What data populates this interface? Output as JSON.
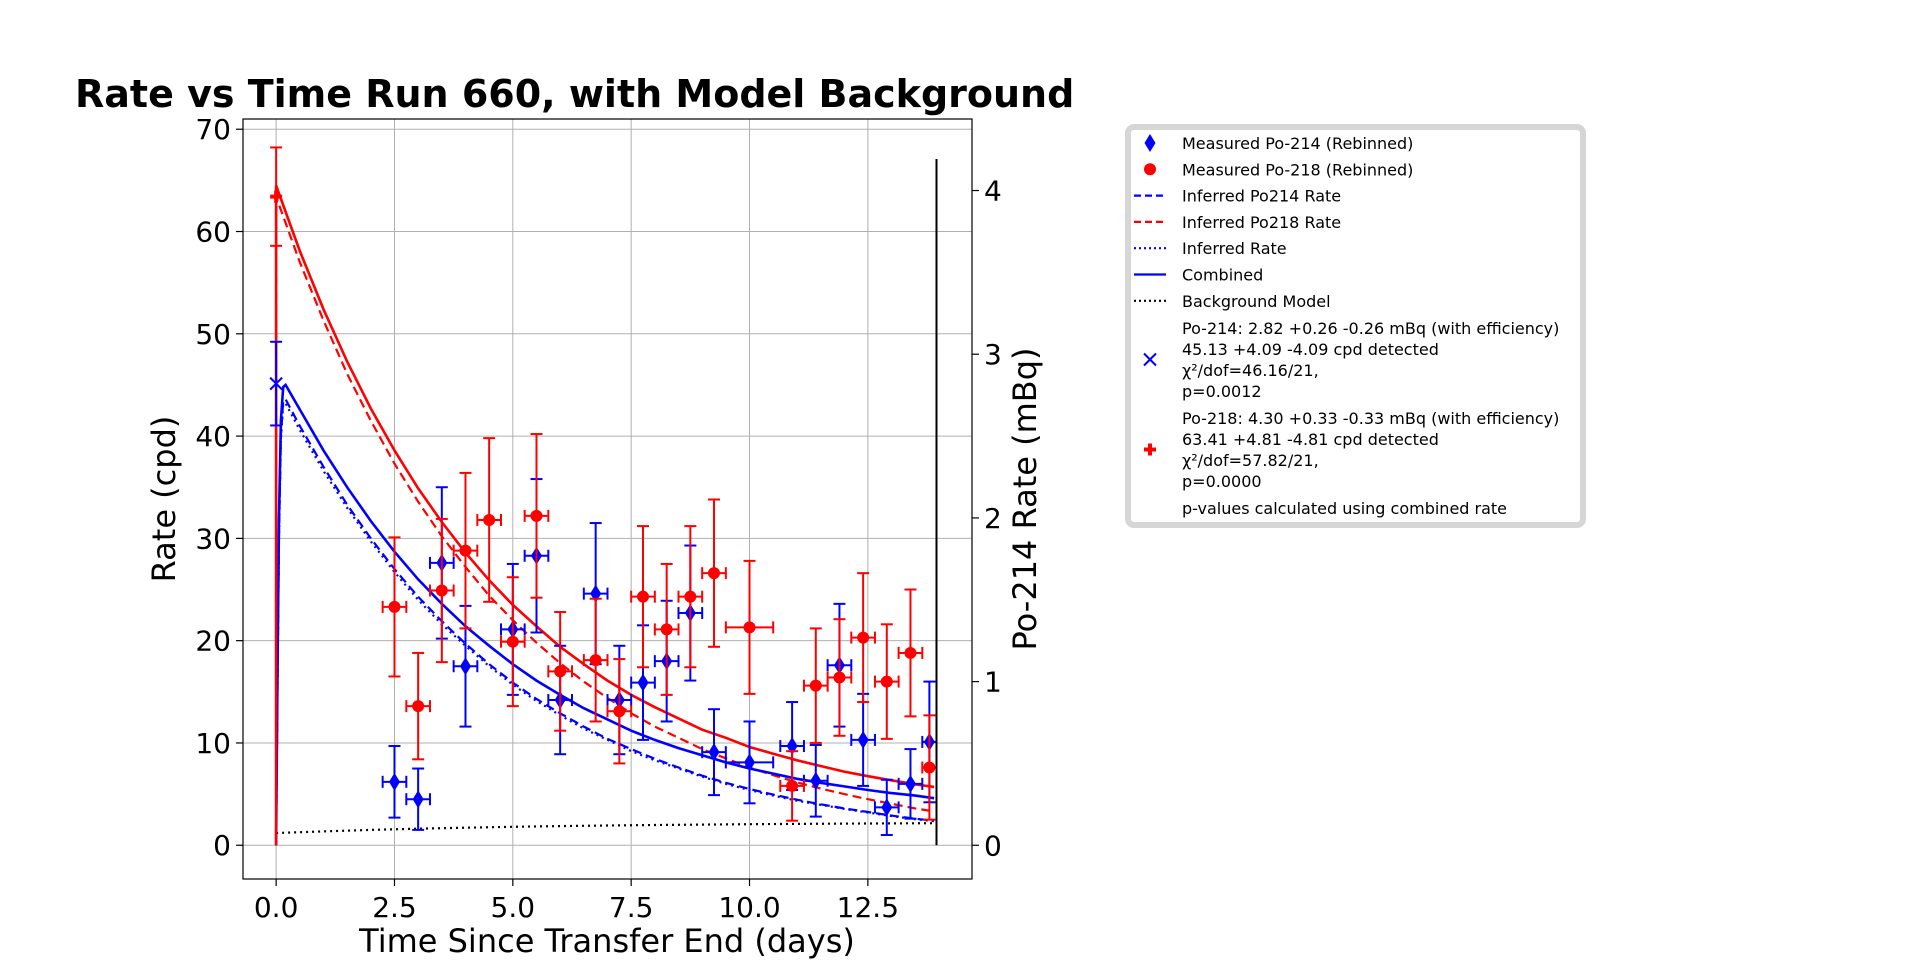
{
  "chart_data": {
    "type": "scatter",
    "title": "Rate vs Time Run 660, with Model Background",
    "xlabel": "Time Since Transfer End (days)",
    "ylabel": "Rate (cpd)",
    "y2label": "Po-214 Rate (mBq)",
    "xlim": [
      -0.7,
      14.7
    ],
    "ylim": [
      -3.3,
      71.0
    ],
    "y2lim": [
      -0.206,
      4.437
    ],
    "grid": true,
    "legend_position": "outside right",
    "x_ticks": [
      "0.0",
      "2.5",
      "5.0",
      "7.5",
      "10.0",
      "12.5"
    ],
    "x_tick_values": [
      0,
      2.5,
      5.0,
      7.5,
      10.0,
      12.5
    ],
    "y_ticks": [
      "0",
      "10",
      "20",
      "30",
      "40",
      "50",
      "60",
      "70"
    ],
    "y_tick_values": [
      0,
      10,
      20,
      30,
      40,
      50,
      60,
      70
    ],
    "y2_ticks": [
      "0",
      "1",
      "2",
      "3",
      "4"
    ],
    "y2_tick_values": [
      0,
      1,
      2,
      3,
      4
    ],
    "colors": {
      "po214": "#0000ff",
      "po218": "#ff0000",
      "background": "#000000"
    },
    "series": [
      {
        "name": "Measured Po-214 (Rebinned)",
        "kind": "points",
        "marker": "diamond",
        "color": "#0000ff",
        "points": [
          {
            "x": 2.5,
            "xerr": 0.25,
            "y": 6.2,
            "yerr": 3.5
          },
          {
            "x": 3.0,
            "xerr": 0.25,
            "y": 4.5,
            "yerr": 3.0
          },
          {
            "x": 3.5,
            "xerr": 0.25,
            "y": 27.6,
            "yerr": 7.4
          },
          {
            "x": 4.0,
            "xerr": 0.25,
            "y": 17.5,
            "yerr": 5.9
          },
          {
            "x": 5.0,
            "xerr": 0.25,
            "y": 21.1,
            "yerr": 6.4
          },
          {
            "x": 5.5,
            "xerr": 0.25,
            "y": 28.3,
            "yerr": 7.5
          },
          {
            "x": 6.0,
            "xerr": 0.25,
            "y": 14.2,
            "yerr": 5.3
          },
          {
            "x": 6.75,
            "xerr": 0.25,
            "y": 24.6,
            "yerr": 6.9
          },
          {
            "x": 7.25,
            "xerr": 0.25,
            "y": 14.2,
            "yerr": 5.3
          },
          {
            "x": 7.75,
            "xerr": 0.25,
            "y": 15.9,
            "yerr": 5.6
          },
          {
            "x": 8.25,
            "xerr": 0.25,
            "y": 18.0,
            "yerr": 5.9
          },
          {
            "x": 8.75,
            "xerr": 0.25,
            "y": 22.7,
            "yerr": 6.6
          },
          {
            "x": 9.25,
            "xerr": 0.25,
            "y": 9.1,
            "yerr": 4.2
          },
          {
            "x": 10.0,
            "xerr": 0.5,
            "y": 8.1,
            "yerr": 4.0
          },
          {
            "x": 10.9,
            "xerr": 0.25,
            "y": 9.7,
            "yerr": 4.3
          },
          {
            "x": 11.4,
            "xerr": 0.25,
            "y": 6.3,
            "yerr": 3.5
          },
          {
            "x": 11.9,
            "xerr": 0.25,
            "y": 17.6,
            "yerr": 6.0
          },
          {
            "x": 12.4,
            "xerr": 0.25,
            "y": 10.3,
            "yerr": 4.5
          },
          {
            "x": 12.9,
            "xerr": 0.25,
            "y": 3.7,
            "yerr": 2.7
          },
          {
            "x": 13.4,
            "xerr": 0.25,
            "y": 6.0,
            "yerr": 3.4
          },
          {
            "x": 13.8,
            "xerr": 0.15,
            "y": 10.1,
            "yerr": 5.9
          }
        ]
      },
      {
        "name": "Measured Po-218 (Rebinned)",
        "kind": "points",
        "marker": "circle",
        "color": "#ff0000",
        "points": [
          {
            "x": 2.5,
            "xerr": 0.25,
            "y": 23.3,
            "yerr": 6.8
          },
          {
            "x": 3.0,
            "xerr": 0.25,
            "y": 13.6,
            "yerr": 5.2
          },
          {
            "x": 3.5,
            "xerr": 0.25,
            "y": 24.9,
            "yerr": 7.0
          },
          {
            "x": 4.0,
            "xerr": 0.25,
            "y": 28.8,
            "yerr": 7.6
          },
          {
            "x": 4.5,
            "xerr": 0.25,
            "y": 31.8,
            "yerr": 8.0
          },
          {
            "x": 5.0,
            "xerr": 0.25,
            "y": 19.9,
            "yerr": 6.3
          },
          {
            "x": 5.5,
            "xerr": 0.25,
            "y": 32.2,
            "yerr": 8.0
          },
          {
            "x": 6.0,
            "xerr": 0.25,
            "y": 17.0,
            "yerr": 5.8
          },
          {
            "x": 6.75,
            "xerr": 0.25,
            "y": 18.1,
            "yerr": 6.0
          },
          {
            "x": 7.25,
            "xerr": 0.25,
            "y": 13.1,
            "yerr": 5.1
          },
          {
            "x": 7.75,
            "xerr": 0.25,
            "y": 24.3,
            "yerr": 6.9
          },
          {
            "x": 8.25,
            "xerr": 0.25,
            "y": 21.1,
            "yerr": 6.4
          },
          {
            "x": 8.75,
            "xerr": 0.25,
            "y": 24.3,
            "yerr": 6.9
          },
          {
            "x": 9.25,
            "xerr": 0.25,
            "y": 26.6,
            "yerr": 7.2
          },
          {
            "x": 10.0,
            "xerr": 0.5,
            "y": 21.3,
            "yerr": 6.5
          },
          {
            "x": 10.9,
            "xerr": 0.25,
            "y": 5.8,
            "yerr": 3.4
          },
          {
            "x": 11.4,
            "xerr": 0.25,
            "y": 15.6,
            "yerr": 5.6
          },
          {
            "x": 11.9,
            "xerr": 0.25,
            "y": 16.4,
            "yerr": 5.7
          },
          {
            "x": 12.4,
            "xerr": 0.25,
            "y": 20.3,
            "yerr": 6.3
          },
          {
            "x": 12.9,
            "xerr": 0.25,
            "y": 16.0,
            "yerr": 5.6
          },
          {
            "x": 13.4,
            "xerr": 0.25,
            "y": 18.8,
            "yerr": 6.2
          },
          {
            "x": 13.8,
            "xerr": 0.15,
            "y": 7.6,
            "yerr": 5.1
          }
        ]
      },
      {
        "name": "Inferred Po214 Rate",
        "kind": "curve",
        "style": "dashed",
        "color": "#0000ff",
        "x": [
          0.0,
          0.03,
          0.06,
          0.1,
          0.15,
          0.2,
          0.5,
          1.0,
          1.5,
          2.0,
          2.5,
          3.0,
          3.5,
          4.0,
          4.5,
          5.0,
          5.5,
          6.0,
          6.5,
          7.0,
          7.5,
          8.0,
          8.5,
          9.0,
          9.5,
          10.0,
          10.5,
          11.0,
          11.5,
          12.0,
          12.5,
          13.0,
          13.5,
          13.9
        ],
        "y": [
          0.0,
          17.0,
          30.5,
          40.0,
          43.5,
          43.6,
          41.0,
          37.0,
          33.3,
          30.0,
          27.0,
          24.3,
          21.9,
          19.7,
          17.7,
          15.9,
          14.3,
          12.9,
          11.6,
          10.4,
          9.4,
          8.45,
          7.6,
          6.8,
          6.1,
          5.5,
          4.95,
          4.45,
          4.0,
          3.6,
          3.25,
          2.9,
          2.6,
          2.4
        ]
      },
      {
        "name": "Inferred Po218 Rate",
        "kind": "curve",
        "style": "dashed",
        "color": "#ff0000",
        "x": [
          0.0,
          0.0,
          0.5,
          1.0,
          1.5,
          2.0,
          2.5,
          3.0,
          3.5,
          4.0,
          4.5,
          5.0,
          5.5,
          6.0,
          6.5,
          7.0,
          7.5,
          8.0,
          8.5,
          9.0,
          9.5,
          10.0,
          10.5,
          11.0,
          11.5,
          12.0,
          12.5,
          13.0,
          13.5,
          13.9
        ],
        "y": [
          0.0,
          63.4,
          57.0,
          51.3,
          46.1,
          41.5,
          37.3,
          33.6,
          30.2,
          27.2,
          24.4,
          22.0,
          19.8,
          17.8,
          16.0,
          14.4,
          12.9,
          11.6,
          10.5,
          9.4,
          8.5,
          7.6,
          6.85,
          6.15,
          5.55,
          5.0,
          4.5,
          4.05,
          3.6,
          3.3
        ]
      },
      {
        "name": "Inferred Rate",
        "kind": "curve",
        "style": "dotted",
        "color": "#0000ff",
        "x": [
          0.0,
          0.03,
          0.06,
          0.1,
          0.15,
          0.2,
          0.5,
          1.0,
          1.5,
          2.0,
          2.5,
          3.0,
          3.5,
          4.0,
          4.5,
          5.0,
          5.5,
          6.0,
          6.5,
          7.0,
          7.5,
          8.0,
          8.5,
          9.0,
          9.5,
          10.0,
          10.5,
          11.0,
          11.5,
          12.0,
          12.5,
          13.0,
          13.5,
          13.9
        ],
        "y": [
          0.0,
          16.8,
          30.2,
          39.6,
          43.1,
          43.2,
          40.6,
          36.6,
          33.0,
          29.7,
          26.7,
          24.0,
          21.6,
          19.5,
          17.5,
          15.7,
          14.1,
          12.7,
          11.4,
          10.3,
          9.2,
          8.3,
          7.5,
          6.7,
          6.0,
          5.4,
          4.85,
          4.35,
          3.95,
          3.55,
          3.2,
          2.85,
          2.55,
          2.35
        ]
      },
      {
        "name": "Combined",
        "kind": "curve",
        "style": "solid",
        "color": "#0000ff",
        "x": [
          0.0,
          0.03,
          0.06,
          0.1,
          0.15,
          0.2,
          0.5,
          1.0,
          1.5,
          2.0,
          2.5,
          3.0,
          3.5,
          4.0,
          4.5,
          5.0,
          5.5,
          6.0,
          6.5,
          7.0,
          7.5,
          8.0,
          8.5,
          9.0,
          9.5,
          10.0,
          10.5,
          11.0,
          11.5,
          12.0,
          12.5,
          13.0,
          13.5,
          13.9
        ],
        "y": [
          0.0,
          18.2,
          32.0,
          41.5,
          44.8,
          45.0,
          42.6,
          38.6,
          35.0,
          31.7,
          28.7,
          26.0,
          23.6,
          21.4,
          19.5,
          17.7,
          16.1,
          14.7,
          13.4,
          12.3,
          11.2,
          10.3,
          9.5,
          8.8,
          8.1,
          7.5,
          7.0,
          6.5,
          6.1,
          5.75,
          5.4,
          5.1,
          4.85,
          4.6
        ]
      },
      {
        "name": "Combined Po218",
        "kind": "curve",
        "style": "solid",
        "color": "#ff0000",
        "x": [
          0.0,
          0.0,
          0.5,
          1.0,
          1.5,
          2.0,
          2.5,
          3.0,
          3.5,
          4.0,
          4.5,
          5.0,
          5.5,
          6.0,
          6.5,
          7.0,
          7.5,
          8.0,
          8.5,
          9.0,
          9.5,
          10.0,
          10.5,
          11.0,
          11.5,
          12.0,
          12.5,
          13.0,
          13.5,
          13.9
        ],
        "y": [
          0.0,
          64.5,
          58.1,
          52.4,
          47.3,
          42.7,
          38.6,
          34.9,
          31.6,
          28.6,
          25.9,
          23.5,
          21.4,
          19.4,
          17.7,
          16.1,
          14.7,
          13.5,
          12.4,
          11.3,
          10.5,
          9.6,
          8.95,
          8.3,
          7.75,
          7.2,
          6.75,
          6.35,
          5.95,
          5.7
        ]
      },
      {
        "name": "Background Model",
        "kind": "curve",
        "style": "dotted",
        "color": "#000000",
        "x": [
          0.0,
          1.0,
          2.0,
          3.0,
          4.0,
          5.0,
          6.0,
          7.0,
          8.0,
          9.0,
          10.0,
          11.0,
          12.0,
          13.0,
          13.9
        ],
        "y": [
          1.2,
          1.35,
          1.5,
          1.62,
          1.72,
          1.8,
          1.87,
          1.93,
          1.98,
          2.02,
          2.06,
          2.09,
          2.12,
          2.14,
          2.16
        ]
      }
    ],
    "fit_markers": [
      {
        "name": "Po-214 fit",
        "marker": "x",
        "color": "#0000ff",
        "x": 0.0,
        "y": 45.13,
        "yerr": 4.09
      },
      {
        "name": "Po-218 fit",
        "marker": "plus",
        "color": "#ff0000",
        "x": 0.0,
        "y": 63.41,
        "yerr": 4.81
      }
    ],
    "end_line_x": 13.95,
    "legend": {
      "entries": [
        {
          "label": "Measured Po-214 (Rebinned)",
          "symbol": "diamond",
          "color": "#0000ff"
        },
        {
          "label": "Measured Po-218 (Rebinned)",
          "symbol": "circle",
          "color": "#ff0000"
        },
        {
          "label": "Inferred Po214 Rate",
          "symbol": "dashed",
          "color": "#0000ff"
        },
        {
          "label": "Inferred Po218 Rate",
          "symbol": "dashed",
          "color": "#ff0000"
        },
        {
          "label": "Inferred Rate",
          "symbol": "dotted",
          "color": "#0000ff"
        },
        {
          "label": "Combined",
          "symbol": "solid",
          "color": "#0000ff"
        },
        {
          "label": "Background Model",
          "symbol": "dotted",
          "color": "#000000"
        }
      ],
      "po214_block": [
        "Po-214: 2.82 +0.26 -0.26 mBq (with efficiency)",
        " 45.13 +4.09 -4.09 cpd detected",
        "χ²/dof=46.16/21,",
        "p=0.0012"
      ],
      "po218_block": [
        "Po-218: 4.30 +0.33 -0.33 mBq (with efficiency)",
        " 63.41 +4.81 -4.81 cpd detected",
        "χ²/dof=57.82/21,",
        "p=0.0000"
      ],
      "footer": "p-values calculated using combined rate"
    }
  }
}
